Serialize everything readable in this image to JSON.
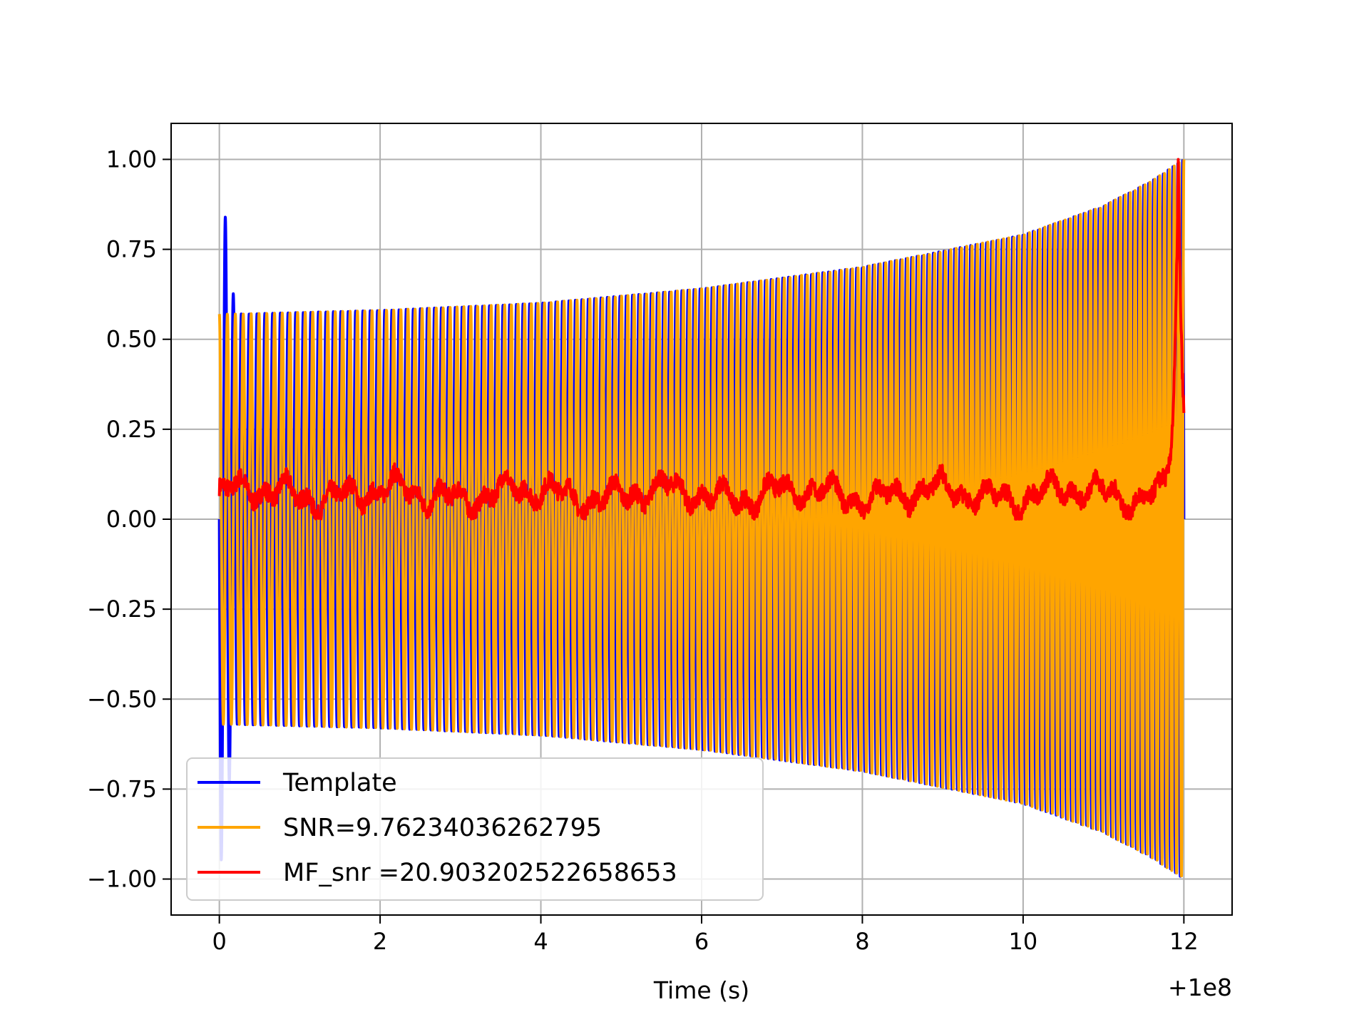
{
  "chart_data": {
    "type": "line",
    "title": "",
    "xlabel": "Time (s)",
    "ylabel": "",
    "x_offset_label": "+1e8",
    "xlim": [
      -0.6,
      12.6
    ],
    "ylim": [
      -1.1,
      1.1
    ],
    "xticks": [
      0,
      2,
      4,
      6,
      8,
      10,
      12
    ],
    "xtick_labels": [
      "0",
      "2",
      "4",
      "6",
      "8",
      "10",
      "12"
    ],
    "yticks": [
      1.0,
      0.75,
      0.5,
      0.25,
      0.0,
      -0.25,
      -0.5,
      -0.75,
      -1.0
    ],
    "ytick_labels": [
      "1.00",
      "0.75",
      "0.50",
      "0.25",
      "0.00",
      "−0.25",
      "−0.50",
      "−0.75",
      "−1.00"
    ],
    "grid": true,
    "legend_position": "lower-left",
    "series": [
      {
        "name": "Template",
        "color": "#0000ff",
        "t_start": 0,
        "t_end": 12,
        "amplitude_envelope": {
          "t": [
            0,
            0.2,
            2,
            4,
            6,
            8,
            10,
            11,
            11.6,
            12
          ],
          "amp": [
            1.0,
            0.57,
            0.58,
            0.6,
            0.64,
            0.7,
            0.79,
            0.87,
            0.94,
            1.0
          ]
        },
        "cycles": 160
      },
      {
        "name": "SNR=9.76234036262795",
        "color": "#ffa500",
        "t_start": 0,
        "t_end": 12,
        "amplitude_envelope": {
          "t": [
            0,
            0.2,
            2,
            4,
            6,
            8,
            10,
            11,
            11.6,
            12
          ],
          "amp": [
            0.57,
            0.57,
            0.58,
            0.6,
            0.64,
            0.7,
            0.79,
            0.87,
            0.94,
            1.0
          ]
        },
        "cycles": 160
      },
      {
        "name": "MF_snr =20.903202522658653",
        "color": "#ff0000",
        "t_start": 0,
        "t_end": 12,
        "baseline": 0.06,
        "noise_amplitude": 0.05,
        "peak_t": 11.93,
        "peak_value": 1.0
      }
    ]
  }
}
